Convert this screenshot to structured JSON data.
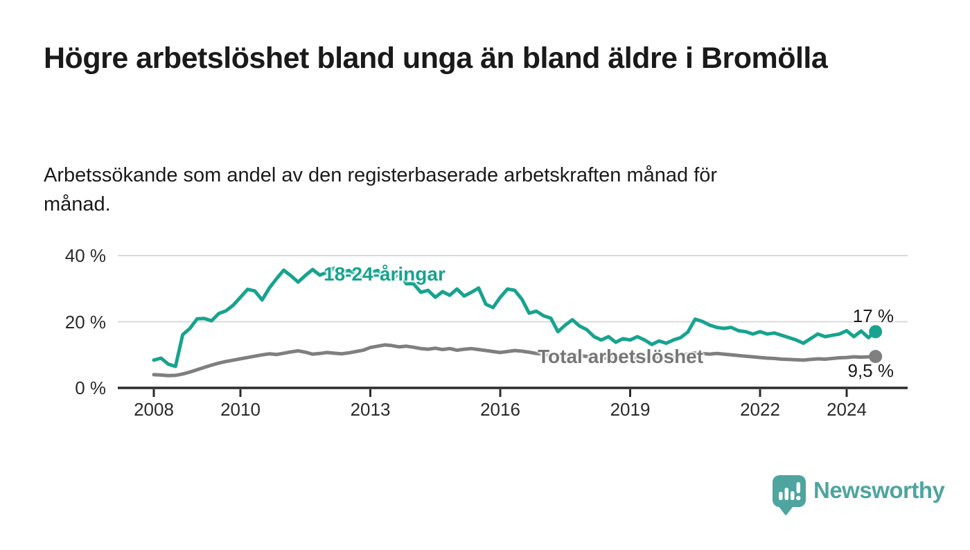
{
  "header": {
    "title": "Högre arbetslöshet bland unga än bland äldre i Bromölla",
    "subtitle": "Arbetssökande som andel av den registerbaserade arbetskraften månad för månad."
  },
  "branding": {
    "logo_text": "Newsworthy",
    "logo_icon": "speech-bubble-bar-chart-icon",
    "logo_color": "#4EA49F"
  },
  "colors": {
    "young_series": "#17A38F",
    "total_series": "#7F7F7F",
    "total_label": "#767676",
    "axis": "#2b2b2b",
    "gridline": "#d9d9d9",
    "text": "#1a1a1a"
  },
  "chart_data": {
    "type": "line",
    "title": "",
    "xlabel": "",
    "ylabel": "",
    "x_unit": "year (sampled every 2 months)",
    "ylim": [
      0,
      42
    ],
    "xlim": [
      2007.2,
      2025.5
    ],
    "grid": "horizontal gridlines at 20 % and 40 %, dark baseline at 0 %",
    "legend_position": "inline labels on lines",
    "yticks": [
      {
        "value": 0,
        "label": "0 %"
      },
      {
        "value": 20,
        "label": "20 %"
      },
      {
        "value": 40,
        "label": "40 %"
      }
    ],
    "xticks": [
      {
        "value": 2008,
        "label": "2008"
      },
      {
        "value": 2010,
        "label": "2010"
      },
      {
        "value": 2013,
        "label": "2013"
      },
      {
        "value": 2016,
        "label": "2016"
      },
      {
        "value": 2019,
        "label": "2019"
      },
      {
        "value": 2022,
        "label": "2022"
      },
      {
        "value": 2024,
        "label": "2024"
      }
    ],
    "x": [
      2008,
      2008.167,
      2008.333,
      2008.5,
      2008.667,
      2008.833,
      2009,
      2009.167,
      2009.333,
      2009.5,
      2009.667,
      2009.833,
      2010,
      2010.167,
      2010.333,
      2010.5,
      2010.667,
      2010.833,
      2011,
      2011.167,
      2011.333,
      2011.5,
      2011.667,
      2011.833,
      2012,
      2012.167,
      2012.333,
      2012.5,
      2012.667,
      2012.833,
      2013,
      2013.167,
      2013.333,
      2013.5,
      2013.667,
      2013.833,
      2014,
      2014.167,
      2014.333,
      2014.5,
      2014.667,
      2014.833,
      2015,
      2015.167,
      2015.333,
      2015.5,
      2015.667,
      2015.833,
      2016,
      2016.167,
      2016.333,
      2016.5,
      2016.667,
      2016.833,
      2017,
      2017.167,
      2017.333,
      2017.5,
      2017.667,
      2017.833,
      2018,
      2018.167,
      2018.333,
      2018.5,
      2018.667,
      2018.833,
      2019,
      2019.167,
      2019.333,
      2019.5,
      2019.667,
      2019.833,
      2020,
      2020.167,
      2020.333,
      2020.5,
      2020.667,
      2020.833,
      2021,
      2021.167,
      2021.333,
      2021.5,
      2021.667,
      2021.833,
      2022,
      2022.167,
      2022.333,
      2022.5,
      2022.667,
      2022.833,
      2023,
      2023.167,
      2023.333,
      2023.5,
      2023.667,
      2023.833,
      2024,
      2024.167,
      2024.333,
      2024.5,
      2024.667
    ],
    "series": [
      {
        "name": "18-24-åringar",
        "color": "#17A38F",
        "end_value_label": "17 %",
        "end_value": 17,
        "values": [
          8.4,
          9.0,
          7.2,
          6.5,
          16.1,
          18.0,
          20.9,
          21.0,
          20.3,
          22.5,
          23.3,
          25.0,
          27.4,
          29.8,
          29.3,
          26.6,
          30.2,
          33.0,
          35.6,
          33.9,
          32.0,
          34.0,
          35.8,
          34.1,
          35.0,
          36.2,
          34.8,
          35.5,
          34.5,
          33.8,
          34.8,
          35.5,
          34.2,
          33.0,
          34.5,
          31.5,
          31.5,
          28.9,
          29.5,
          27.4,
          29.1,
          28.0,
          29.9,
          27.8,
          28.9,
          30.2,
          25.3,
          24.3,
          27.4,
          29.9,
          29.5,
          26.8,
          22.6,
          23.2,
          21.8,
          21.1,
          17.0,
          19.0,
          20.6,
          18.7,
          17.6,
          15.5,
          14.5,
          15.5,
          13.8,
          14.9,
          14.5,
          15.5,
          14.5,
          13.1,
          14.2,
          13.5,
          14.5,
          15.2,
          16.9,
          20.8,
          20.1,
          19.0,
          18.3,
          18.0,
          18.3,
          17.3,
          17.0,
          16.3,
          17.0,
          16.3,
          16.6,
          15.9,
          15.2,
          14.5,
          13.5,
          14.9,
          16.3,
          15.5,
          15.9,
          16.3,
          17.3,
          15.5,
          17.2,
          15.2,
          17.0
        ]
      },
      {
        "name": "Total arbetslöshet",
        "color": "#7F7F7F",
        "end_value_label": "9,5 %",
        "end_value": 9.5,
        "values": [
          4.0,
          3.9,
          3.7,
          3.8,
          4.2,
          4.8,
          5.5,
          6.2,
          6.9,
          7.5,
          8.0,
          8.4,
          8.8,
          9.2,
          9.6,
          10.0,
          10.3,
          10.1,
          10.5,
          10.9,
          11.2,
          10.8,
          10.2,
          10.4,
          10.7,
          10.5,
          10.3,
          10.6,
          11.0,
          11.4,
          12.2,
          12.6,
          13.0,
          12.8,
          12.4,
          12.6,
          12.3,
          11.9,
          11.7,
          12.0,
          11.6,
          11.9,
          11.4,
          11.7,
          11.9,
          11.6,
          11.3,
          11.0,
          10.7,
          11.0,
          11.3,
          11.1,
          10.8,
          10.4,
          10.2,
          9.9,
          9.6,
          9.8,
          10.1,
          9.8,
          9.5,
          9.2,
          8.9,
          9.1,
          8.8,
          9.0,
          9.2,
          9.0,
          8.8,
          9.0,
          9.3,
          9.1,
          9.4,
          9.8,
          10.3,
          10.6,
          10.4,
          10.2,
          10.4,
          10.2,
          10.0,
          9.8,
          9.6,
          9.4,
          9.2,
          9.0,
          8.9,
          8.7,
          8.6,
          8.5,
          8.4,
          8.6,
          8.8,
          8.7,
          8.9,
          9.1,
          9.2,
          9.4,
          9.3,
          9.4,
          9.5
        ]
      }
    ]
  }
}
